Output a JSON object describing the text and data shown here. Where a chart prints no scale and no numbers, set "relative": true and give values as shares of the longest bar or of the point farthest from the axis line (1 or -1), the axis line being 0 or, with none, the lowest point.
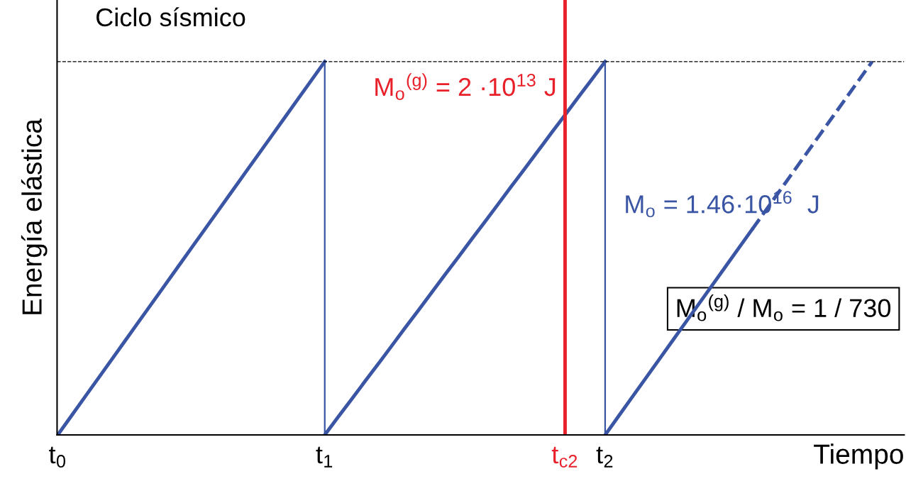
{
  "chart_data": {
    "type": "line",
    "title": "Ciclo sísmico",
    "xlabel": "Tiempo",
    "ylabel": "Energía elástica",
    "relative": true,
    "categories": [
      "t$_{0}$",
      null,
      null,
      null,
      null,
      null,
      null,
      null,
      null,
      null,
      null,
      null,
      null,
      null,
      null,
      null,
      null,
      null,
      null,
      null,
      "t$_{1}$",
      null,
      null,
      null,
      null,
      null,
      null,
      null,
      null,
      null,
      null,
      null,
      null,
      null,
      null,
      null,
      null,
      null,
      "t$_{c2}$",
      null,
      null,
      "t$_{2}$",
      null,
      null,
      null,
      null,
      null,
      null,
      null,
      null,
      null,
      null,
      null,
      null,
      null,
      null,
      null,
      null,
      null,
      null,
      null,
      null,
      null,
      null
    ],
    "series": [
      {
        "color": "#3a55a4",
        "values": [
          0,
          0.05,
          0.1,
          0.15,
          0.2,
          0.25,
          0.3,
          0.35,
          0.4,
          0.45,
          0.5,
          0.55,
          0.6,
          0.65,
          0.7,
          0.75,
          0.8,
          0.85,
          0.9,
          0.95,
          1,
          null,
          null,
          null,
          null,
          null,
          null,
          null,
          null,
          null,
          null,
          null,
          null,
          null,
          null,
          null,
          null,
          null,
          null,
          null,
          null,
          null,
          null,
          null,
          null,
          null,
          null,
          null,
          null,
          null,
          null,
          null,
          null,
          null,
          null,
          null,
          null,
          null,
          null,
          null,
          null,
          null,
          null,
          null
        ]
      },
      {
        "color": "#3a55a4",
        "values": [
          null,
          null,
          null,
          null,
          null,
          null,
          null,
          null,
          null,
          null,
          null,
          null,
          null,
          null,
          null,
          null,
          null,
          null,
          null,
          null,
          0,
          0.048,
          0.095,
          0.143,
          0.19,
          0.238,
          0.286,
          0.333,
          0.381,
          0.429,
          0.476,
          0.524,
          0.571,
          0.619,
          0.667,
          0.714,
          0.762,
          0.81,
          0.857,
          0.905,
          0.952,
          1,
          null,
          null,
          null,
          null,
          null,
          null,
          null,
          null,
          null,
          null,
          null,
          null,
          null,
          null,
          null,
          null,
          null,
          null,
          null,
          null,
          null,
          null
        ]
      },
      {
        "name": "M$_{o}$ = 1.46·10$^{16}$  J",
        "color": "#3a55a4",
        "values": [
          null,
          null,
          null,
          null,
          null,
          null,
          null,
          null,
          null,
          null,
          null,
          null,
          null,
          null,
          null,
          null,
          null,
          null,
          null,
          null,
          null,
          null,
          null,
          null,
          null,
          null,
          null,
          null,
          null,
          null,
          null,
          null,
          null,
          null,
          null,
          null,
          null,
          null,
          null,
          null,
          null,
          0,
          0.05,
          0.1,
          0.15,
          0.2,
          0.25,
          0.3,
          0.35,
          0.4,
          0.45,
          0.5,
          0.55,
          null,
          null,
          null,
          null,
          null,
          null,
          null,
          null,
          null,
          null,
          null
        ]
      },
      {
        "color": "#3a55a4",
        "line_style": "dashed",
        "values": [
          null,
          null,
          null,
          null,
          null,
          null,
          null,
          null,
          null,
          null,
          null,
          null,
          null,
          null,
          null,
          null,
          null,
          null,
          null,
          null,
          null,
          null,
          null,
          null,
          null,
          null,
          null,
          null,
          null,
          null,
          null,
          null,
          null,
          null,
          null,
          null,
          null,
          null,
          null,
          null,
          null,
          null,
          null,
          null,
          null,
          null,
          null,
          null,
          null,
          null,
          null,
          null,
          0.55,
          0.6,
          0.65,
          0.7,
          0.75,
          0.8,
          0.85,
          0.9,
          0.95,
          1,
          null,
          null
        ]
      },
      {
        "type": "bar",
        "color": "#3a55a4",
        "values": [
          null,
          null,
          null,
          null,
          null,
          null,
          null,
          null,
          null,
          null,
          null,
          null,
          null,
          null,
          null,
          null,
          null,
          null,
          null,
          null,
          1,
          null,
          null,
          null,
          null,
          null,
          null,
          null,
          null,
          null,
          null,
          null,
          null,
          null,
          null,
          null,
          null,
          null,
          null,
          null,
          null,
          1,
          null,
          null,
          null,
          null,
          null,
          null,
          null,
          null,
          null,
          null,
          null,
          null,
          null,
          null,
          null,
          null,
          null,
          null,
          null,
          null,
          null,
          null
        ]
      }
    ],
    "ref_lines": [
      {
        "axis": "y",
        "value": 1,
        "color": "#000000",
        "line_style": "dashed"
      },
      {
        "axis": "x",
        "value": "t$_{c2}$",
        "color": "#e8202a",
        "line_style": "solid",
        "label": "M$_{o}$$^{(g)}$ = 2 ·10$^{13}$ J"
      }
    ],
    "annotations": [
      "M$_{o}$$^{(g)}$ / M$_{o}$ = 1 / 730"
    ],
    "grid": false,
    "legend": false
  }
}
